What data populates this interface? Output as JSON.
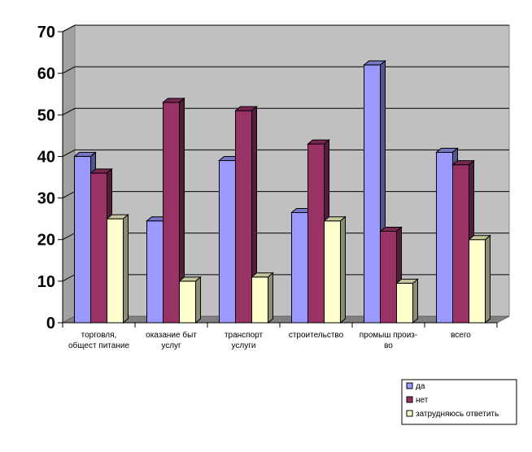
{
  "chart_data": {
    "type": "bar",
    "title": "",
    "xlabel": "",
    "ylabel": "",
    "ylim": [
      0,
      70
    ],
    "yticks": [
      0,
      10,
      20,
      30,
      40,
      50,
      60,
      70
    ],
    "grid": true,
    "legend_position": "bottom-right",
    "categories": [
      [
        "торговля,",
        "общест питание"
      ],
      [
        "оказание быт",
        "услуг"
      ],
      [
        "транспорт",
        "услуги"
      ],
      [
        "строительство"
      ],
      [
        "промыш произ-",
        "во"
      ],
      [
        "всего"
      ]
    ],
    "series": [
      {
        "name": "да",
        "color": "#9999FF",
        "values": [
          40,
          24.5,
          39,
          26.5,
          62,
          41
        ]
      },
      {
        "name": "нет",
        "color": "#993366",
        "values": [
          36,
          53,
          51,
          43,
          22,
          38
        ]
      },
      {
        "name": "затрудняюсь ответить",
        "color": "#FFFFCC",
        "values": [
          25,
          10,
          11,
          24.5,
          9.5,
          20
        ]
      }
    ]
  }
}
